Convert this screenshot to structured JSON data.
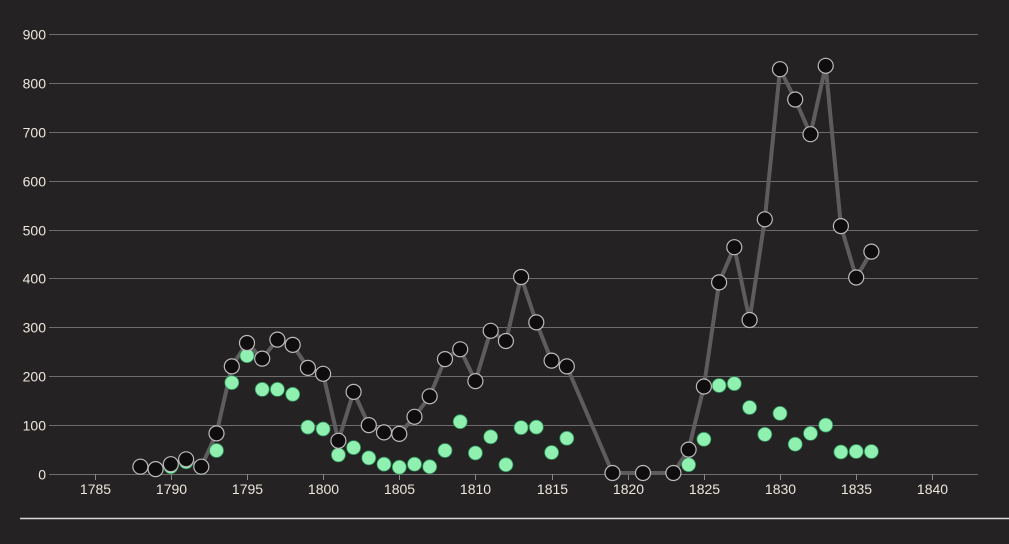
{
  "chart_data": {
    "type": "scatter",
    "title": "",
    "xlabel": "",
    "ylabel": "",
    "xlim": [
      1782,
      1843
    ],
    "ylim": [
      0,
      900
    ],
    "x_ticks": [
      1785,
      1790,
      1795,
      1800,
      1805,
      1810,
      1815,
      1820,
      1825,
      1830,
      1835,
      1840
    ],
    "y_ticks": [
      0,
      100,
      200,
      300,
      400,
      500,
      600,
      700,
      800,
      900
    ],
    "grid": "horizontal",
    "legend": "none",
    "colors": {
      "background": "#242223",
      "grid": "#6e6c6d",
      "line": "#5e5c5d",
      "dark_points": "#0f0d0e",
      "green_points": "#8ff0b0",
      "text": "#ece6dd"
    },
    "series": [
      {
        "style": "line+markers",
        "color": "#0f0d0e",
        "points": [
          [
            1788,
            15
          ],
          [
            1789,
            10
          ],
          [
            1790,
            20
          ],
          [
            1791,
            30
          ],
          [
            1792,
            15
          ],
          [
            1793,
            83
          ],
          [
            1794,
            220
          ],
          [
            1795,
            268
          ],
          [
            1796,
            236
          ],
          [
            1797,
            275
          ],
          [
            1798,
            264
          ],
          [
            1799,
            217
          ],
          [
            1800,
            205
          ],
          [
            1801,
            68
          ],
          [
            1802,
            168
          ],
          [
            1803,
            100
          ],
          [
            1804,
            85
          ],
          [
            1805,
            82
          ],
          [
            1806,
            117
          ],
          [
            1807,
            159
          ],
          [
            1808,
            235
          ],
          [
            1809,
            255
          ],
          [
            1810,
            190
          ],
          [
            1811,
            293
          ],
          [
            1812,
            272
          ],
          [
            1813,
            403
          ],
          [
            1814,
            310
          ],
          [
            1815,
            232
          ],
          [
            1816,
            220
          ],
          [
            1819,
            2
          ],
          [
            1821,
            2
          ],
          [
            1823,
            2
          ],
          [
            1824,
            50
          ],
          [
            1825,
            179
          ],
          [
            1826,
            392
          ],
          [
            1827,
            464
          ],
          [
            1828,
            315
          ],
          [
            1829,
            521
          ],
          [
            1830,
            828
          ],
          [
            1831,
            766
          ],
          [
            1832,
            695
          ],
          [
            1833,
            835
          ],
          [
            1834,
            507
          ],
          [
            1835,
            402
          ],
          [
            1836,
            455
          ]
        ]
      },
      {
        "style": "markers",
        "color": "#8ff0b0",
        "points": [
          [
            1788,
            16
          ],
          [
            1789,
            11
          ],
          [
            1790,
            15
          ],
          [
            1791,
            25
          ],
          [
            1792,
            13
          ],
          [
            1793,
            48
          ],
          [
            1794,
            187
          ],
          [
            1795,
            242
          ],
          [
            1796,
            173
          ],
          [
            1797,
            173
          ],
          [
            1798,
            163
          ],
          [
            1799,
            96
          ],
          [
            1800,
            92
          ],
          [
            1801,
            39
          ],
          [
            1802,
            54
          ],
          [
            1803,
            33
          ],
          [
            1804,
            20
          ],
          [
            1805,
            14
          ],
          [
            1806,
            20
          ],
          [
            1807,
            15
          ],
          [
            1808,
            48
          ],
          [
            1809,
            107
          ],
          [
            1810,
            43
          ],
          [
            1811,
            76
          ],
          [
            1812,
            19
          ],
          [
            1813,
            95
          ],
          [
            1814,
            96
          ],
          [
            1815,
            44
          ],
          [
            1816,
            73
          ],
          [
            1824,
            19
          ],
          [
            1825,
            71
          ],
          [
            1826,
            181
          ],
          [
            1827,
            185
          ],
          [
            1828,
            136
          ],
          [
            1829,
            81
          ],
          [
            1830,
            124
          ],
          [
            1831,
            61
          ],
          [
            1832,
            83
          ],
          [
            1833,
            100
          ],
          [
            1834,
            45
          ],
          [
            1835,
            46
          ],
          [
            1836,
            46
          ]
        ]
      }
    ]
  }
}
